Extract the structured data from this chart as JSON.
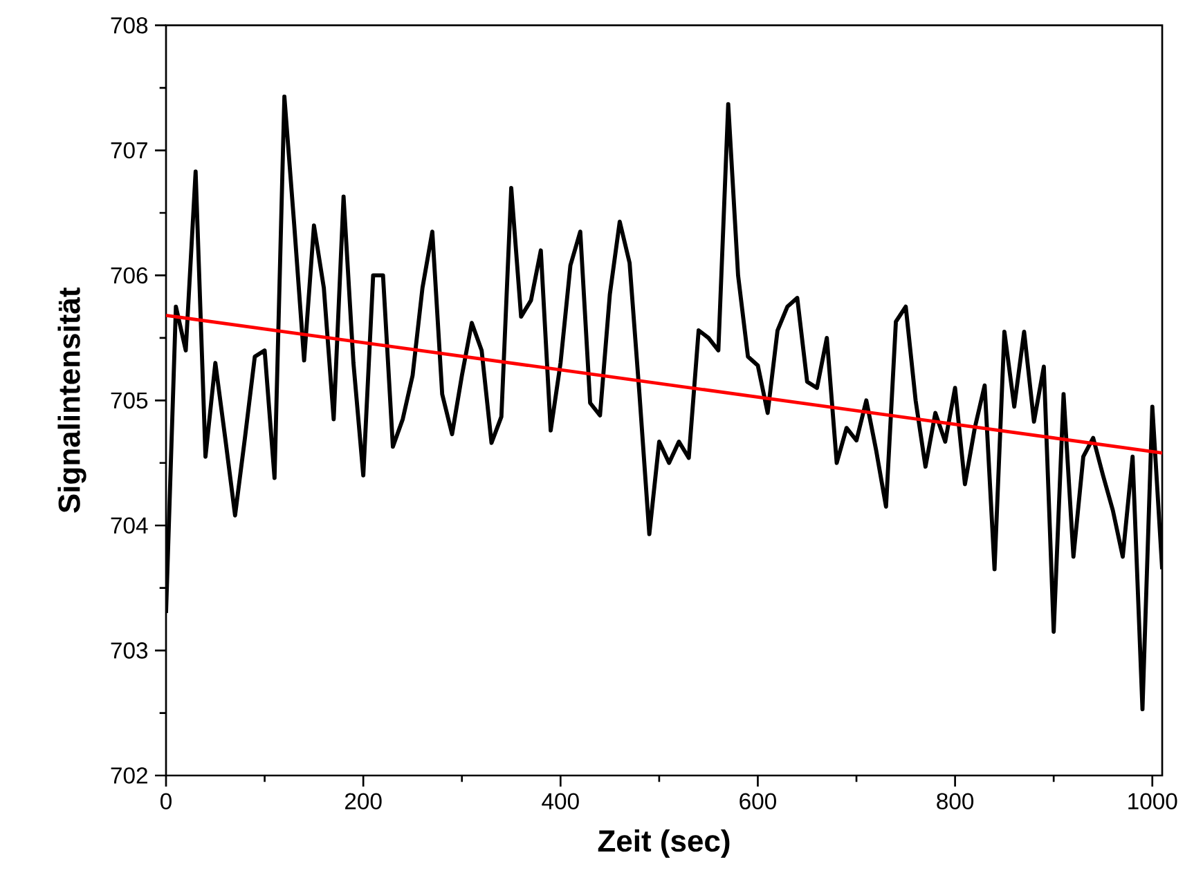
{
  "chart_data": {
    "type": "line",
    "xlabel": "Zeit (sec)",
    "ylabel": "Signalintensität",
    "xlim": [
      0,
      1010
    ],
    "ylim": [
      702,
      708
    ],
    "xticks": [
      0,
      200,
      400,
      600,
      800,
      1000
    ],
    "yticks": [
      702,
      703,
      704,
      705,
      706,
      707,
      708
    ],
    "grid": false,
    "marker": "none",
    "line_style": "solid",
    "series": [
      {
        "color": "#000000",
        "x": [
          0,
          10,
          20,
          30,
          40,
          50,
          60,
          70,
          80,
          90,
          100,
          110,
          120,
          130,
          140,
          150,
          160,
          170,
          180,
          190,
          200,
          210,
          220,
          230,
          240,
          250,
          260,
          270,
          280,
          290,
          300,
          310,
          320,
          330,
          340,
          350,
          360,
          370,
          380,
          390,
          400,
          410,
          420,
          430,
          440,
          450,
          460,
          470,
          480,
          490,
          500,
          510,
          520,
          530,
          540,
          550,
          560,
          570,
          580,
          590,
          600,
          610,
          620,
          630,
          640,
          650,
          660,
          670,
          680,
          690,
          700,
          710,
          720,
          730,
          740,
          750,
          760,
          770,
          780,
          790,
          800,
          810,
          820,
          830,
          840,
          850,
          860,
          870,
          880,
          890,
          900,
          910,
          920,
          930,
          940,
          950,
          960,
          970,
          980,
          990,
          1000,
          1010
        ],
        "values": [
          703.3,
          705.75,
          705.4,
          706.83,
          704.55,
          705.3,
          704.7,
          704.08,
          704.7,
          705.35,
          705.4,
          704.38,
          707.43,
          706.4,
          705.32,
          706.4,
          705.9,
          704.85,
          706.63,
          705.3,
          704.4,
          706.0,
          706.0,
          704.63,
          704.85,
          705.2,
          705.9,
          706.35,
          705.05,
          704.73,
          705.2,
          705.62,
          705.4,
          704.66,
          704.87,
          706.7,
          705.67,
          705.8,
          706.2,
          704.76,
          705.3,
          706.08,
          706.35,
          704.98,
          704.88,
          705.85,
          706.43,
          706.1,
          705.05,
          703.93,
          704.67,
          704.5,
          704.67,
          704.54,
          705.56,
          705.5,
          705.4,
          707.37,
          706.0,
          705.35,
          705.28,
          704.9,
          705.56,
          705.75,
          705.82,
          705.15,
          705.1,
          705.5,
          704.5,
          704.78,
          704.68,
          705.0,
          704.6,
          704.15,
          705.63,
          705.75,
          705.0,
          704.47,
          704.9,
          704.67,
          705.1,
          704.33,
          704.78,
          705.12,
          703.65,
          705.55,
          704.95,
          705.55,
          704.83,
          705.27,
          703.15,
          705.05,
          703.75,
          704.55,
          704.7,
          704.4,
          704.12,
          703.75,
          704.55,
          702.53,
          704.95,
          703.65
        ]
      },
      {
        "type": "line",
        "color": "#ff0000",
        "x": [
          0,
          1010
        ],
        "values": [
          705.68,
          704.58
        ]
      }
    ]
  }
}
